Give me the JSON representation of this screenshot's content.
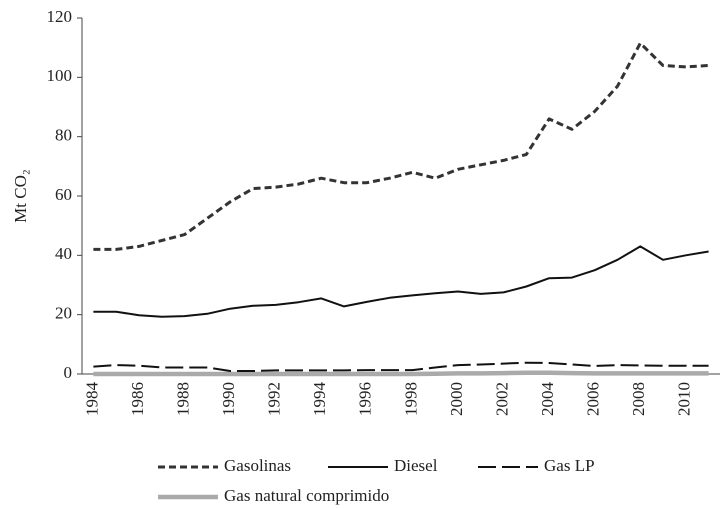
{
  "chart_data": {
    "type": "line",
    "y_label": "Mt CO₂",
    "categories": [
      "1984",
      null,
      "1986",
      null,
      "1988",
      null,
      "1990",
      null,
      "1992",
      null,
      "1994",
      null,
      "1996",
      null,
      "1998",
      null,
      "2000",
      null,
      "2002",
      null,
      "2004",
      null,
      "2006",
      null,
      "2008",
      null,
      "2010",
      null
    ],
    "series": [
      {
        "name": "Gasolinas",
        "color": "#333333",
        "line_style": "dashed",
        "values": [
          42,
          42,
          43,
          45,
          47,
          52.5,
          58,
          62.5,
          63,
          64,
          66,
          64.5,
          64.5,
          66,
          68,
          66,
          69,
          70.5,
          72,
          74,
          86,
          82.5,
          88.5,
          97,
          111.5,
          104,
          103.5,
          104
        ]
      },
      {
        "name": "Diesel",
        "color": "#111111",
        "line_style": "solid",
        "values": [
          21,
          21,
          19.8,
          19.3,
          19.5,
          20.3,
          22,
          23,
          23.3,
          24.2,
          25.5,
          22.8,
          24.3,
          25.7,
          26.5,
          27.2,
          27.8,
          27,
          27.5,
          29.5,
          32.3,
          32.5,
          35,
          38.5,
          43,
          38.5,
          40,
          41.3
        ]
      },
      {
        "name": "Gas LP",
        "color": "#111111",
        "line_style": "longdash",
        "values": [
          2.5,
          3,
          2.8,
          2.2,
          2.2,
          2.2,
          1,
          1,
          1.2,
          1.2,
          1.2,
          1.2,
          1.3,
          1.3,
          1.3,
          2.2,
          3,
          3.2,
          3.5,
          3.8,
          3.7,
          3.2,
          2.7,
          3,
          2.9,
          2.8,
          2.8,
          2.8
        ]
      },
      {
        "name": "Gas natural comprimido",
        "color": "#aaaaaa",
        "line_style": "thick",
        "values": [
          0,
          0,
          0,
          0,
          0,
          0,
          0,
          0,
          0,
          0,
          0,
          0,
          0,
          0,
          0,
          0.1,
          0.2,
          0.2,
          0.3,
          0.4,
          0.4,
          0.3,
          0.2,
          0.2,
          0.2,
          0.2,
          0.2,
          0.2
        ]
      }
    ],
    "ylim": [
      0,
      120
    ],
    "yticks": [
      0,
      20,
      40,
      60,
      80,
      100,
      120
    ]
  }
}
